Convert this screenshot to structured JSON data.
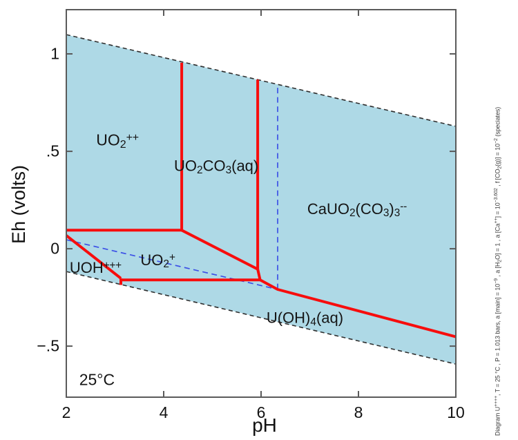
{
  "chart_data": {
    "type": "phase-diagram",
    "subtype": "Eh-pH (Pourbaix) diagram, uranium species with Ca and CO2",
    "xlabel": "pH",
    "ylabel": "Eh (volts)",
    "xlim": [
      2,
      10
    ],
    "ylim": [
      -0.762,
      1.227
    ],
    "x_ticks": [
      {
        "v": 2,
        "label": "2",
        "edge": true
      },
      {
        "v": 4,
        "label": "4"
      },
      {
        "v": 6,
        "label": "6"
      },
      {
        "v": 8,
        "label": "8"
      },
      {
        "v": 10,
        "label": "10",
        "edge": true
      }
    ],
    "y_ticks": [
      {
        "v": 1,
        "label": "1"
      },
      {
        "v": 0.5,
        "label": ".5"
      },
      {
        "v": 0,
        "label": "0"
      },
      {
        "v": -0.5,
        "label": "−.5"
      }
    ],
    "grid": false,
    "colors": {
      "water_fill": "#aed9e6",
      "red_boundary": "#f70d0d",
      "blue_dashed": "#3c50e6",
      "black_dashed": "#2e2e2e",
      "frame": "#5a5a5a"
    },
    "water_stability_polygon": [
      [
        2,
        1.099
      ],
      [
        10,
        0.628
      ],
      [
        10,
        -0.592
      ],
      [
        2,
        -0.117
      ]
    ],
    "boundaries_red_solid": [
      {
        "id": "uo2pp-uo2co3",
        "points": [
          [
            4.37,
            0.955
          ],
          [
            4.37,
            0.095
          ]
        ]
      },
      {
        "id": "uo2pp-uo2p",
        "points": [
          [
            2,
            0.095
          ],
          [
            4.37,
            0.095
          ]
        ]
      },
      {
        "id": "uo2co3-uo2p",
        "points": [
          [
            4.37,
            0.095
          ],
          [
            5.93,
            -0.105
          ]
        ]
      },
      {
        "id": "uo2co3-cauo2co33",
        "points": [
          [
            5.93,
            0.868
          ],
          [
            5.93,
            -0.105
          ]
        ]
      },
      {
        "id": "cauo2co33-uoh4",
        "points": [
          [
            5.93,
            -0.105
          ],
          [
            5.98,
            -0.16
          ],
          [
            6.34,
            -0.209
          ],
          [
            10,
            -0.452
          ]
        ]
      },
      {
        "id": "uo2p-uoh4",
        "points": [
          [
            3.12,
            -0.16
          ],
          [
            5.98,
            -0.16
          ]
        ]
      },
      {
        "id": "uohppp-uo2p",
        "points": [
          [
            2,
            0.068
          ],
          [
            3.12,
            -0.152
          ]
        ]
      },
      {
        "id": "uohppp-uoh4",
        "points": [
          [
            3.12,
            -0.152
          ],
          [
            3.12,
            -0.186
          ]
        ]
      }
    ],
    "boundaries_black_dashed": [
      {
        "id": "o2-h2o-limit",
        "points": [
          [
            2,
            1.099
          ],
          [
            10,
            0.628
          ]
        ]
      },
      {
        "id": "h2o-h2-limit",
        "points": [
          [
            2,
            -0.117
          ],
          [
            10,
            -0.592
          ]
        ]
      }
    ],
    "boundaries_blue_dashed": [
      {
        "id": "speciation-sloped",
        "points": [
          [
            2,
            0.046
          ],
          [
            6.34,
            -0.209
          ]
        ]
      },
      {
        "id": "speciation-vertical",
        "points": [
          [
            6.34,
            0.826
          ],
          [
            6.34,
            -0.209
          ]
        ]
      }
    ],
    "region_labels": [
      {
        "id": "uo2-2plus",
        "pH": 3.05,
        "Eh": 0.555,
        "size": 23,
        "segments": [
          [
            "n",
            "UO"
          ],
          [
            "s",
            "2"
          ],
          [
            "p",
            "++"
          ]
        ]
      },
      {
        "id": "uo2co3-aq",
        "pH": 5.08,
        "Eh": 0.417,
        "size": 22,
        "segments": [
          [
            "n",
            "UO"
          ],
          [
            "s",
            "2"
          ],
          [
            "n",
            "CO"
          ],
          [
            "s",
            "3"
          ],
          [
            "n",
            "(aq)"
          ]
        ]
      },
      {
        "id": "cauo2-co33",
        "pH": 7.97,
        "Eh": 0.2,
        "size": 22,
        "segments": [
          [
            "n",
            "CaUO"
          ],
          [
            "s",
            "2"
          ],
          [
            "n",
            "(CO"
          ],
          [
            "s",
            "3"
          ],
          [
            "n",
            ")"
          ],
          [
            "s",
            "3"
          ],
          [
            "p",
            "--"
          ]
        ]
      },
      {
        "id": "uoh-3plus",
        "pH": 2.6,
        "Eh": -0.1,
        "size": 22,
        "segments": [
          [
            "n",
            "UOH"
          ],
          [
            "p",
            "+++"
          ]
        ]
      },
      {
        "id": "uo2-plus",
        "pH": 3.88,
        "Eh": -0.062,
        "size": 22,
        "segments": [
          [
            "n",
            "UO"
          ],
          [
            "s",
            "2"
          ],
          [
            "p",
            "+"
          ]
        ]
      },
      {
        "id": "u-oh4-aq",
        "pH": 6.9,
        "Eh": -0.36,
        "size": 22,
        "segments": [
          [
            "n",
            "U(OH)"
          ],
          [
            "s",
            "4"
          ],
          [
            "n",
            "(aq)"
          ]
        ]
      },
      {
        "id": "temperature",
        "pH": 2.63,
        "Eh": -0.675,
        "size": 23,
        "segments": [
          [
            "n",
            "25°C"
          ]
        ]
      }
    ],
    "caption_segments": [
      [
        "n",
        "Diagram U"
      ],
      [
        "p",
        "++++"
      ],
      [
        "n",
        ", T  =  25 °C , P  =  1.013 bars, a [main]  =  10"
      ],
      [
        "p",
        "−9"
      ],
      [
        "n",
        " , a [H"
      ],
      [
        "s",
        "2"
      ],
      [
        "n",
        "O]  =  1 , a [Ca"
      ],
      [
        "p",
        "++"
      ],
      [
        "n",
        "]  =  10"
      ],
      [
        "p",
        "−3.602"
      ],
      [
        "n",
        " , f [CO"
      ],
      [
        "s",
        "2"
      ],
      [
        "n",
        "(g)]  =  10"
      ],
      [
        "p",
        "−2"
      ],
      [
        "n",
        " (speciates)"
      ]
    ]
  }
}
